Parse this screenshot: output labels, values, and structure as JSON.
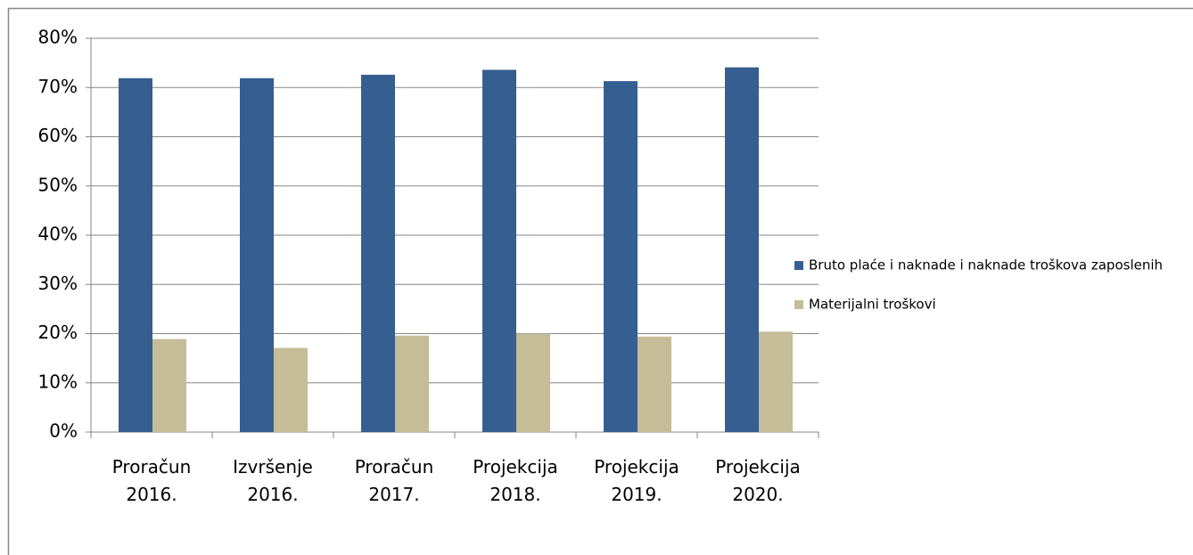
{
  "chart_data": {
    "type": "bar",
    "categories": [
      "Proračun 2016.",
      "Izvršenje 2016.",
      "Proračun 2017.",
      "Projekcija 2018.",
      "Projekcija 2019.",
      "Projekcija 2020."
    ],
    "series": [
      {
        "name": "Bruto plaće i naknade i naknade troškova zaposlenih",
        "color": "#365f91",
        "values": [
          71.9,
          71.9,
          72.6,
          73.6,
          71.3,
          74.1
        ]
      },
      {
        "name": "Materijalni troškovi",
        "color": "#c4bd97",
        "values": [
          18.9,
          17.1,
          19.6,
          20.0,
          19.4,
          20.4
        ]
      }
    ],
    "ylim": [
      0,
      80
    ],
    "yticks": [
      {
        "value": 0,
        "label": "0%"
      },
      {
        "value": 10,
        "label": "10%"
      },
      {
        "value": 20,
        "label": "20%"
      },
      {
        "value": 30,
        "label": "30%"
      },
      {
        "value": 40,
        "label": "40%"
      },
      {
        "value": 50,
        "label": "50%"
      },
      {
        "value": 60,
        "label": "60%"
      },
      {
        "value": 70,
        "label": "70%"
      },
      {
        "value": 80,
        "label": "80%"
      }
    ],
    "grid": true,
    "legend": "right"
  }
}
